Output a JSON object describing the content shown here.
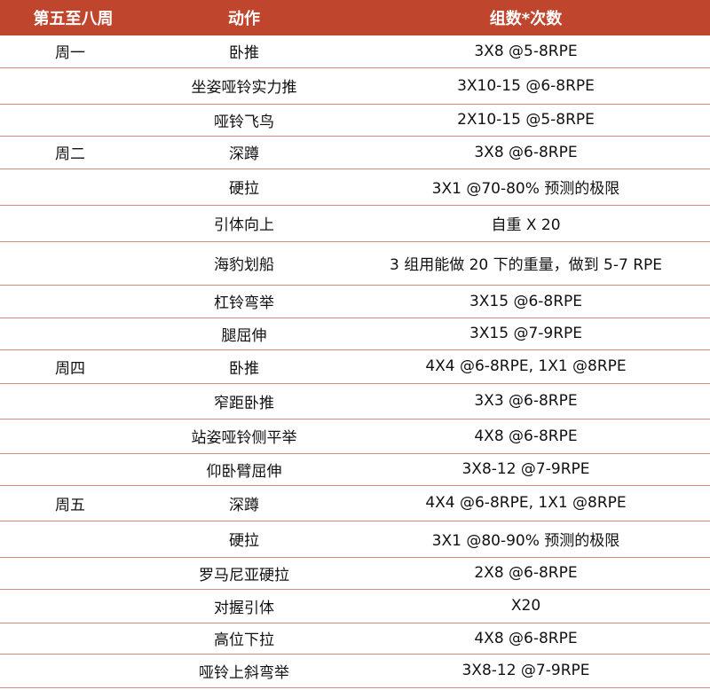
{
  "header": {
    "col_day": "第五至八周",
    "col_move": "动作",
    "col_sets": "组数*次数"
  },
  "rows": [
    {
      "day": "周一",
      "move": "卧推",
      "sets": "3X8 @5-8RPE",
      "h": 36
    },
    {
      "day": "",
      "move": "坐姿哑铃实力推",
      "sets": "3X10-15 @6-8RPE",
      "h": 41
    },
    {
      "day": "",
      "move": "哑铃飞鸟",
      "sets": "2X10-15 @5-8RPE",
      "h": 36
    },
    {
      "day": "周二",
      "move": "深蹲",
      "sets": "3X8 @6-8RPE",
      "h": 37
    },
    {
      "day": "",
      "move": "硬拉",
      "sets": "3X1 @70-80% 预测的极限",
      "h": 41
    },
    {
      "day": "",
      "move": "引体向上",
      "sets": "自重 X 20",
      "h": 41
    },
    {
      "day": "",
      "move": "海豹划船",
      "sets": "3 组用能做 20 下的重量，做到 5-7 RPE",
      "h": 49
    },
    {
      "day": "",
      "move": "杠铃弯举",
      "sets": "3X15 @6-8RPE",
      "h": 37
    },
    {
      "day": "",
      "move": "腿屈伸",
      "sets": "3X15 @7-9RPE",
      "h": 36
    },
    {
      "day": "周四",
      "move": "卧推",
      "sets": "4X4 @6-8RPE, 1X1 @8RPE",
      "h": 38
    },
    {
      "day": "",
      "move": "窄距卧推",
      "sets": "3X3 @6-8RPE",
      "h": 40
    },
    {
      "day": "",
      "move": "站姿哑铃侧平举",
      "sets": "4X8 @6-8RPE",
      "h": 39
    },
    {
      "day": "",
      "move": "仰卧臂屈伸",
      "sets": "3X8-12 @7-9RPE",
      "h": 36
    },
    {
      "day": "周五",
      "move": "深蹲",
      "sets": "4X4 @6-8RPE, 1X1 @8RPE",
      "h": 40
    },
    {
      "day": "",
      "move": "硬拉",
      "sets": "3X1 @80-90% 预测的极限",
      "h": 41
    },
    {
      "day": "",
      "move": "罗马尼亚硬拉",
      "sets": "2X8 @6-8RPE",
      "h": 36
    },
    {
      "day": "",
      "move": "对握引体",
      "sets": "X20",
      "h": 38
    },
    {
      "day": "",
      "move": "高位下拉",
      "sets": "4X8 @6-8RPE",
      "h": 35
    },
    {
      "day": "",
      "move": "哑铃上斜弯举",
      "sets": "3X8-12 @7-9RPE",
      "h": 38
    }
  ]
}
